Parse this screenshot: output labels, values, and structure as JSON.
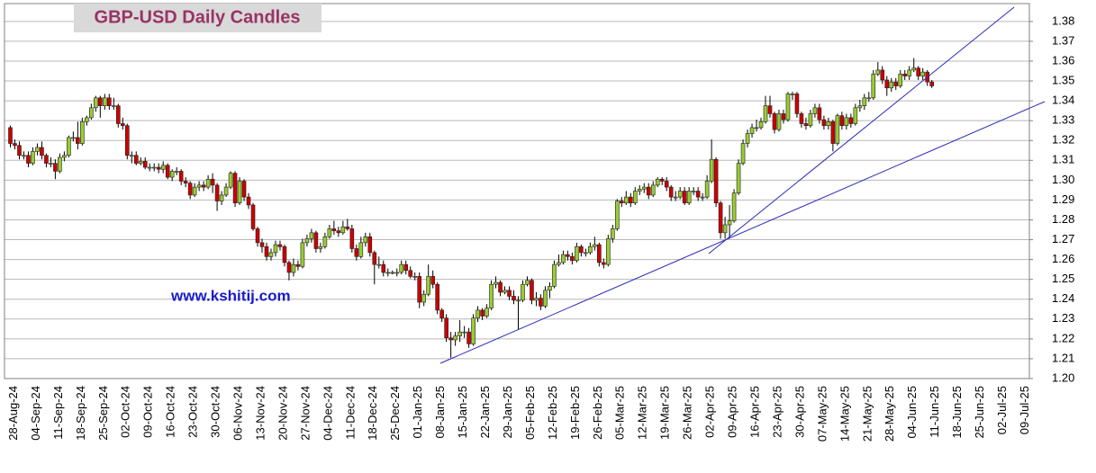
{
  "chart_data": {
    "type": "candlestick",
    "title": "GBP-USD Daily Candles",
    "annotation": "www.kshitij.com",
    "up_color": "#99cc33",
    "down_color": "#cc0000",
    "grid": true,
    "ylim": [
      1.2,
      1.389
    ],
    "yticks": [
      {
        "value": 1.2,
        "label": "1.20"
      },
      1.21,
      1.22,
      1.23,
      1.24,
      1.25,
      1.26,
      1.27,
      1.28,
      1.29,
      {
        "value": 1.3,
        "label": "1.30"
      },
      1.31,
      1.32,
      1.33,
      1.34,
      1.35,
      1.36,
      1.37,
      1.38
    ],
    "categories": [
      "28-Aug-24",
      null,
      null,
      null,
      null,
      "04-Sep-24",
      null,
      null,
      null,
      null,
      "11-Sep-24",
      null,
      null,
      null,
      null,
      "18-Sep-24",
      null,
      null,
      null,
      null,
      "25-Sep-24",
      null,
      null,
      null,
      null,
      "02-Oct-24",
      null,
      null,
      null,
      null,
      "09-Oct-24",
      null,
      null,
      null,
      null,
      "16-Oct-24",
      null,
      null,
      null,
      null,
      "23-Oct-24",
      null,
      null,
      null,
      null,
      "30-Oct-24",
      null,
      null,
      null,
      null,
      "06-Nov-24",
      null,
      null,
      null,
      null,
      "13-Nov-24",
      null,
      null,
      null,
      null,
      "20-Nov-24",
      null,
      null,
      null,
      null,
      "27-Nov-24",
      null,
      null,
      null,
      null,
      "04-Dec-24",
      null,
      null,
      null,
      null,
      "11-Dec-24",
      null,
      null,
      null,
      null,
      "18-Dec-24",
      null,
      null,
      null,
      null,
      "25-Dec-24",
      null,
      null,
      null,
      null,
      "01-Jan-25",
      null,
      null,
      null,
      null,
      "08-Jan-25",
      null,
      null,
      null,
      null,
      "15-Jan-25",
      null,
      null,
      null,
      null,
      "22-Jan-25",
      null,
      null,
      null,
      null,
      "29-Jan-25",
      null,
      null,
      null,
      null,
      "05-Feb-25",
      null,
      null,
      null,
      null,
      "12-Feb-25",
      null,
      null,
      null,
      null,
      "19-Feb-25",
      null,
      null,
      null,
      null,
      "26-Feb-25",
      null,
      null,
      null,
      null,
      "05-Mar-25",
      null,
      null,
      null,
      null,
      "12-Mar-25",
      null,
      null,
      null,
      null,
      "19-Mar-25",
      null,
      null,
      null,
      null,
      "26-Mar-25",
      null,
      null,
      null,
      null,
      "02-Apr-25",
      null,
      null,
      null,
      null,
      "09-Apr-25",
      null,
      null,
      null,
      null,
      "16-Apr-25",
      null,
      null,
      null,
      null,
      "23-Apr-25",
      null,
      null,
      null,
      null,
      "30-Apr-25",
      null,
      null,
      null,
      null,
      "07-May-25",
      null,
      null,
      null,
      null,
      "14-May-25",
      null,
      null,
      null,
      null,
      "21-May-25",
      null,
      null,
      null,
      null,
      "28-May-25",
      null,
      null,
      null,
      null,
      "04-Jun-25",
      null,
      null,
      null,
      null,
      "11-Jun-25",
      null,
      null,
      null,
      null,
      "18-Jun-25",
      null,
      null,
      null,
      null,
      "25-Jun-25",
      null,
      null,
      null,
      null,
      "02-Jul-25",
      null,
      null,
      null,
      null,
      "09-Jul-25",
      null
    ],
    "open": [
      1.3265,
      1.3185,
      1.3175,
      1.3125,
      1.3125,
      1.3085,
      1.3145,
      1.3165,
      1.3125,
      1.3085,
      1.3085,
      1.3045,
      1.3115,
      1.3125,
      1.3215,
      1.3215,
      1.3185,
      1.3295,
      1.3315,
      1.3365,
      1.3415,
      1.3375,
      1.3415,
      1.3375,
      1.3375,
      1.3285,
      1.3275,
      1.3125,
      1.3125,
      1.3085,
      1.3095,
      1.3065,
      1.3065,
      1.3065,
      1.3055,
      1.3075,
      1.3015,
      1.3045,
      1.3045,
      1.2995,
      1.2985,
      1.2925,
      1.2965,
      1.2975,
      1.2965,
      1.3005,
      1.2975,
      1.2895,
      1.2925,
      1.2965,
      1.3035,
      1.2885,
      1.2995,
      1.2915,
      1.2875,
      1.2755,
      1.2685,
      1.2665,
      1.2615,
      1.2635,
      1.2675,
      1.2665,
      1.2585,
      1.2535,
      1.2575,
      1.2565,
      1.2685,
      1.2705,
      1.2735,
      1.2655,
      1.2665,
      1.2715,
      1.2755,
      1.2745,
      1.2735,
      1.2765,
      1.2755,
      1.2655,
      1.2615,
      1.2685,
      1.2715,
      1.2635,
      1.2575,
      1.2575,
      1.2535,
      1.2535,
      1.2535,
      1.2535,
      1.2575,
      1.2545,
      1.2515,
      1.2515,
      1.2385,
      1.2425,
      1.2515,
      1.2475,
      1.2345,
      1.2305,
      1.2205,
      1.2195,
      1.2215,
      1.2235,
      1.2235,
      1.2175,
      1.2305,
      1.2345,
      1.2315,
      1.2355,
      1.2475,
      1.2485,
      1.2435,
      1.2445,
      1.2415,
      1.2395,
      1.2395,
      1.2475,
      1.2495,
      1.2395,
      1.2405,
      1.2365,
      1.2445,
      1.2465,
      1.2575,
      1.2585,
      1.2625,
      1.2615,
      1.2595,
      1.2665,
      1.2635,
      1.2635,
      1.2665,
      1.2675,
      1.2585,
      1.2575,
      1.2705,
      1.2755,
      1.2895,
      1.2885,
      1.2915,
      1.2885,
      1.2945,
      1.2955,
      1.2965,
      1.2925,
      1.2975,
      1.3005,
      1.2995,
      1.2965,
      1.2915,
      1.2915,
      1.2945,
      1.2885,
      1.2945,
      1.2945,
      1.2915,
      1.2915,
      1.2995,
      1.3105,
      1.2885,
      1.2735,
      1.2775,
      1.2795,
      1.2935,
      1.3085,
      1.3185,
      1.3235,
      1.3265,
      1.3265,
      1.3295,
      1.3375,
      1.3335,
      1.3255,
      1.3335,
      1.3305,
      1.3435,
      1.3435,
      1.3335,
      1.3285,
      1.3275,
      1.3335,
      1.3365,
      1.3305,
      1.3275,
      1.3295,
      1.3185,
      1.3325,
      1.3275,
      1.3315,
      1.3285,
      1.3365,
      1.3375,
      1.3415,
      1.3415,
      1.3535,
      1.3555,
      1.3505,
      1.3465,
      1.3495,
      1.3475,
      1.3535,
      1.3525,
      1.3555,
      1.3565,
      1.3525,
      1.3545,
      1.3495,
      null,
      null,
      null,
      null,
      null,
      null,
      null,
      null,
      null,
      null,
      null,
      null,
      null,
      null,
      null,
      null,
      null,
      null,
      null,
      null,
      null
    ],
    "high": [
      1.3275,
      1.3205,
      1.3195,
      1.3145,
      1.3145,
      1.3165,
      1.3185,
      1.3195,
      1.3135,
      1.3115,
      1.3105,
      1.3135,
      1.3145,
      1.3225,
      1.3245,
      1.3295,
      1.3315,
      1.3325,
      1.3385,
      1.3425,
      1.3425,
      1.3435,
      1.3435,
      1.3415,
      1.3385,
      1.3315,
      1.3285,
      1.3145,
      1.3145,
      1.3115,
      1.3115,
      1.3085,
      1.3085,
      1.3085,
      1.3095,
      1.3085,
      1.3055,
      1.3065,
      1.3055,
      1.3015,
      1.2995,
      1.2985,
      1.2995,
      1.2995,
      1.3025,
      1.3035,
      1.2985,
      1.2945,
      1.2985,
      1.3045,
      1.3045,
      1.3015,
      1.3005,
      1.2935,
      1.2885,
      1.2765,
      1.2705,
      1.2685,
      1.2655,
      1.2695,
      1.2695,
      1.2675,
      1.2595,
      1.2605,
      1.2595,
      1.2705,
      1.2725,
      1.2755,
      1.2745,
      1.2685,
      1.2735,
      1.2775,
      1.2795,
      1.2765,
      1.2795,
      1.2805,
      1.2775,
      1.2675,
      1.2715,
      1.2735,
      1.2735,
      1.2645,
      1.2615,
      1.2595,
      1.2555,
      1.2545,
      1.2555,
      1.2595,
      1.2595,
      1.2565,
      1.2535,
      1.2535,
      1.2445,
      1.2575,
      1.2545,
      1.2485,
      1.2355,
      1.2325,
      1.2235,
      1.2235,
      1.2295,
      1.2265,
      1.2255,
      1.2325,
      1.2365,
      1.2355,
      1.2375,
      1.2495,
      1.2515,
      1.2495,
      1.2465,
      1.2465,
      1.2445,
      1.2415,
      1.2495,
      1.2515,
      1.2505,
      1.2435,
      1.2425,
      1.2465,
      1.2485,
      1.2595,
      1.2625,
      1.2645,
      1.2645,
      1.2635,
      1.2685,
      1.2675,
      1.2655,
      1.2685,
      1.2715,
      1.2685,
      1.2605,
      1.2725,
      1.2775,
      1.2905,
      1.2915,
      1.2945,
      1.2935,
      1.2965,
      1.2975,
      1.2985,
      1.2985,
      1.2995,
      1.3015,
      1.3015,
      1.3015,
      1.2975,
      1.2945,
      1.2965,
      1.2965,
      1.2965,
      1.2965,
      1.2965,
      1.2935,
      1.3025,
      1.3205,
      1.3115,
      1.2895,
      1.2815,
      1.2875,
      1.2955,
      1.3105,
      1.3205,
      1.3255,
      1.3285,
      1.3305,
      1.3315,
      1.3425,
      1.3425,
      1.3345,
      1.3355,
      1.3355,
      1.3445,
      1.3445,
      1.3445,
      1.3345,
      1.3315,
      1.3355,
      1.3385,
      1.3385,
      1.3325,
      1.3315,
      1.3305,
      1.3335,
      1.3345,
      1.3335,
      1.3335,
      1.3385,
      1.3405,
      1.3435,
      1.3445,
      1.3555,
      1.3595,
      1.3575,
      1.3525,
      1.3515,
      1.3515,
      1.3555,
      1.3555,
      1.3575,
      1.3615,
      1.3575,
      1.3565,
      1.3555,
      1.3505,
      null,
      null,
      null,
      null,
      null,
      null,
      null,
      null,
      null,
      null,
      null,
      null,
      null,
      null,
      null,
      null,
      null,
      null,
      null,
      null,
      null
    ],
    "low": [
      1.3165,
      1.3155,
      1.3105,
      1.3105,
      1.3065,
      1.3075,
      1.3125,
      1.3105,
      1.3065,
      1.3065,
      1.3005,
      1.3035,
      1.3095,
      1.3115,
      1.3195,
      1.3155,
      1.3175,
      1.3275,
      1.3305,
      1.3345,
      1.3315,
      1.3355,
      1.3355,
      1.3355,
      1.3265,
      1.3255,
      1.3105,
      1.3085,
      1.3075,
      1.3075,
      1.3055,
      1.3045,
      1.3045,
      1.3035,
      1.3035,
      1.3005,
      1.2995,
      1.3025,
      1.2975,
      1.2965,
      1.2905,
      1.2915,
      1.2945,
      1.2945,
      1.2955,
      1.2935,
      1.2845,
      1.2875,
      1.2915,
      1.2955,
      1.2865,
      1.2875,
      1.2895,
      1.2855,
      1.2745,
      1.2665,
      1.2635,
      1.2595,
      1.2595,
      1.2615,
      1.2645,
      1.2565,
      1.2495,
      1.2515,
      1.2545,
      1.2555,
      1.2665,
      1.2685,
      1.2635,
      1.2635,
      1.2655,
      1.2705,
      1.2725,
      1.2715,
      1.2725,
      1.2745,
      1.2635,
      1.2595,
      1.2605,
      1.2665,
      1.2615,
      1.2475,
      1.2555,
      1.2515,
      1.2515,
      1.2525,
      1.2515,
      1.2525,
      1.2525,
      1.2505,
      1.2495,
      1.2355,
      1.2365,
      1.2415,
      1.2455,
      1.2325,
      1.2285,
      1.2185,
      1.2105,
      1.2165,
      1.2185,
      1.2205,
      1.2155,
      1.2165,
      1.2285,
      1.2295,
      1.2305,
      1.2345,
      1.2455,
      1.2415,
      1.2425,
      1.2395,
      1.2375,
      1.2245,
      1.2385,
      1.2465,
      1.2375,
      1.2365,
      1.2345,
      1.2355,
      1.2405,
      1.2455,
      1.2565,
      1.2575,
      1.2595,
      1.2575,
      1.2585,
      1.2615,
      1.2615,
      1.2625,
      1.2645,
      1.2565,
      1.2555,
      1.2565,
      1.2685,
      1.2745,
      1.2865,
      1.2875,
      1.2865,
      1.2875,
      1.2925,
      1.2935,
      1.2905,
      1.2915,
      1.2965,
      1.2975,
      1.2945,
      1.2895,
      1.2895,
      1.2905,
      1.2875,
      1.2875,
      1.2925,
      1.2895,
      1.2895,
      1.2905,
      1.2985,
      1.2865,
      1.2705,
      1.2705,
      1.2705,
      1.2785,
      1.2925,
      1.3075,
      1.3165,
      1.3215,
      1.3245,
      1.3255,
      1.3285,
      1.3315,
      1.3235,
      1.3245,
      1.3285,
      1.3295,
      1.3405,
      1.3315,
      1.3265,
      1.3255,
      1.3265,
      1.3315,
      1.3285,
      1.3255,
      1.3255,
      1.3145,
      1.3175,
      1.3255,
      1.3255,
      1.3265,
      1.3275,
      1.3345,
      1.3355,
      1.3395,
      1.3405,
      1.3525,
      1.3485,
      1.3425,
      1.3445,
      1.3455,
      1.3465,
      1.3505,
      1.3505,
      1.3545,
      1.3505,
      1.3505,
      1.3475,
      1.3465,
      null,
      null,
      null,
      null,
      null,
      null,
      null,
      null,
      null,
      null,
      null,
      null,
      null,
      null,
      null,
      null,
      null,
      null,
      null,
      null,
      null
    ],
    "close": [
      1.3185,
      1.3175,
      1.3125,
      1.3125,
      1.3085,
      1.3145,
      1.3165,
      1.3125,
      1.3085,
      1.3085,
      1.3045,
      1.3115,
      1.3125,
      1.3215,
      1.3215,
      1.3185,
      1.3295,
      1.3315,
      1.3365,
      1.3415,
      1.3375,
      1.3415,
      1.3375,
      1.3375,
      1.3285,
      1.3275,
      1.3125,
      1.3125,
      1.3085,
      1.3095,
      1.3065,
      1.3065,
      1.3065,
      1.3055,
      1.3075,
      1.3015,
      1.3045,
      1.3045,
      1.2995,
      1.2985,
      1.2925,
      1.2965,
      1.2975,
      1.2965,
      1.3005,
      1.2975,
      1.2895,
      1.2925,
      1.2965,
      1.3035,
      1.2885,
      1.2995,
      1.2915,
      1.2875,
      1.2755,
      1.2685,
      1.2665,
      1.2615,
      1.2635,
      1.2675,
      1.2665,
      1.2585,
      1.2535,
      1.2575,
      1.2565,
      1.2685,
      1.2705,
      1.2735,
      1.2655,
      1.2665,
      1.2715,
      1.2755,
      1.2745,
      1.2735,
      1.2765,
      1.2755,
      1.2655,
      1.2615,
      1.2685,
      1.2715,
      1.2635,
      1.2575,
      1.2575,
      1.2535,
      1.2535,
      1.2535,
      1.2535,
      1.2575,
      1.2545,
      1.2515,
      1.2515,
      1.2385,
      1.2425,
      1.2515,
      1.2475,
      1.2345,
      1.2305,
      1.2205,
      1.2195,
      1.2215,
      1.2235,
      1.2235,
      1.2175,
      1.2305,
      1.2345,
      1.2315,
      1.2355,
      1.2475,
      1.2485,
      1.2435,
      1.2445,
      1.2415,
      1.2395,
      1.2395,
      1.2475,
      1.2495,
      1.2395,
      1.2405,
      1.2365,
      1.2445,
      1.2465,
      1.2575,
      1.2585,
      1.2625,
      1.2615,
      1.2595,
      1.2665,
      1.2635,
      1.2635,
      1.2665,
      1.2675,
      1.2585,
      1.2575,
      1.2705,
      1.2755,
      1.2895,
      1.2885,
      1.2915,
      1.2885,
      1.2945,
      1.2955,
      1.2965,
      1.2925,
      1.2975,
      1.3005,
      1.2995,
      1.2965,
      1.2915,
      1.2915,
      1.2945,
      1.2885,
      1.2945,
      1.2945,
      1.2915,
      1.2915,
      1.2995,
      1.3105,
      1.2885,
      1.2735,
      1.2775,
      1.2795,
      1.2935,
      1.3085,
      1.3185,
      1.3235,
      1.3265,
      1.3265,
      1.3295,
      1.3375,
      1.3335,
      1.3255,
      1.3335,
      1.3305,
      1.3435,
      1.3435,
      1.3335,
      1.3285,
      1.3275,
      1.3335,
      1.3365,
      1.3305,
      1.3275,
      1.3295,
      1.3185,
      1.3325,
      1.3275,
      1.3315,
      1.3285,
      1.3365,
      1.3375,
      1.3415,
      1.3415,
      1.3535,
      1.3555,
      1.3505,
      1.3465,
      1.3495,
      1.3475,
      1.3535,
      1.3525,
      1.3555,
      1.3565,
      1.3525,
      1.3545,
      1.3495,
      1.3475,
      null,
      null,
      null,
      null,
      null,
      null,
      null,
      null,
      null,
      null,
      null,
      null,
      null,
      null,
      null,
      null,
      null,
      null,
      null,
      null,
      null
    ]
  }
}
